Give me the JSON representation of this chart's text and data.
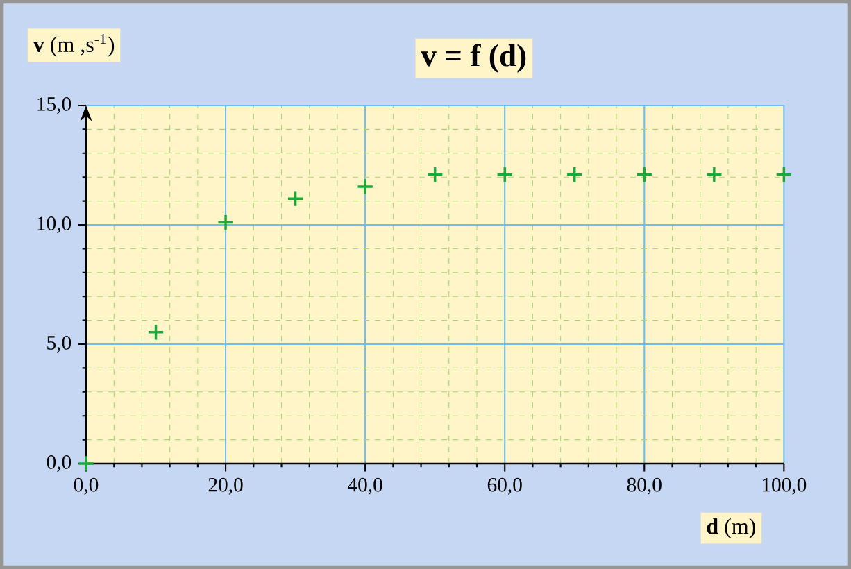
{
  "chart_data": {
    "type": "scatter",
    "title": "v = f (d)",
    "xlabel": "**d** (m)",
    "ylabel": "**v** (m ,s$^{-1}$)",
    "x": [
      0,
      10,
      20,
      30,
      40,
      50,
      60,
      70,
      80,
      90,
      100
    ],
    "values": [
      0,
      5.5,
      10.1,
      11.1,
      11.6,
      12.1,
      12.1,
      12.1,
      12.1,
      12.1,
      12.1
    ],
    "color": "#1aaa3a",
    "marker": "cross",
    "xlim": [
      0,
      100
    ],
    "ylim": [
      0,
      15
    ],
    "xticks": [
      {
        "value": 0,
        "label": "0,0"
      },
      {
        "value": 4,
        "label": null
      },
      {
        "value": 8,
        "label": null
      },
      {
        "value": 12,
        "label": null
      },
      {
        "value": 16,
        "label": null
      },
      {
        "value": 20,
        "label": "20,0"
      },
      {
        "value": 24,
        "label": null
      },
      {
        "value": 28,
        "label": null
      },
      {
        "value": 32,
        "label": null
      },
      {
        "value": 36,
        "label": null
      },
      {
        "value": 40,
        "label": "40,0"
      },
      {
        "value": 44,
        "label": null
      },
      {
        "value": 48,
        "label": null
      },
      {
        "value": 52,
        "label": null
      },
      {
        "value": 56,
        "label": null
      },
      {
        "value": 60,
        "label": "60,0"
      },
      {
        "value": 64,
        "label": null
      },
      {
        "value": 68,
        "label": null
      },
      {
        "value": 72,
        "label": null
      },
      {
        "value": 76,
        "label": null
      },
      {
        "value": 80,
        "label": "80,0"
      },
      {
        "value": 84,
        "label": null
      },
      {
        "value": 88,
        "label": null
      },
      {
        "value": 92,
        "label": null
      },
      {
        "value": 96,
        "label": null
      },
      {
        "value": 100,
        "label": "100,0"
      }
    ],
    "yticks": [
      {
        "value": 0,
        "label": "0,0"
      },
      {
        "value": 1,
        "label": null
      },
      {
        "value": 2,
        "label": null
      },
      {
        "value": 3,
        "label": null
      },
      {
        "value": 4,
        "label": null
      },
      {
        "value": 5,
        "label": "5,0"
      },
      {
        "value": 6,
        "label": null
      },
      {
        "value": 7,
        "label": null
      },
      {
        "value": 8,
        "label": null
      },
      {
        "value": 9,
        "label": null
      },
      {
        "value": 10,
        "label": "10,0"
      },
      {
        "value": 11,
        "label": null
      },
      {
        "value": 12,
        "label": null
      },
      {
        "value": 13,
        "label": null
      },
      {
        "value": 14,
        "label": null
      },
      {
        "value": 15,
        "label": "15,0"
      }
    ],
    "grid": true
  }
}
